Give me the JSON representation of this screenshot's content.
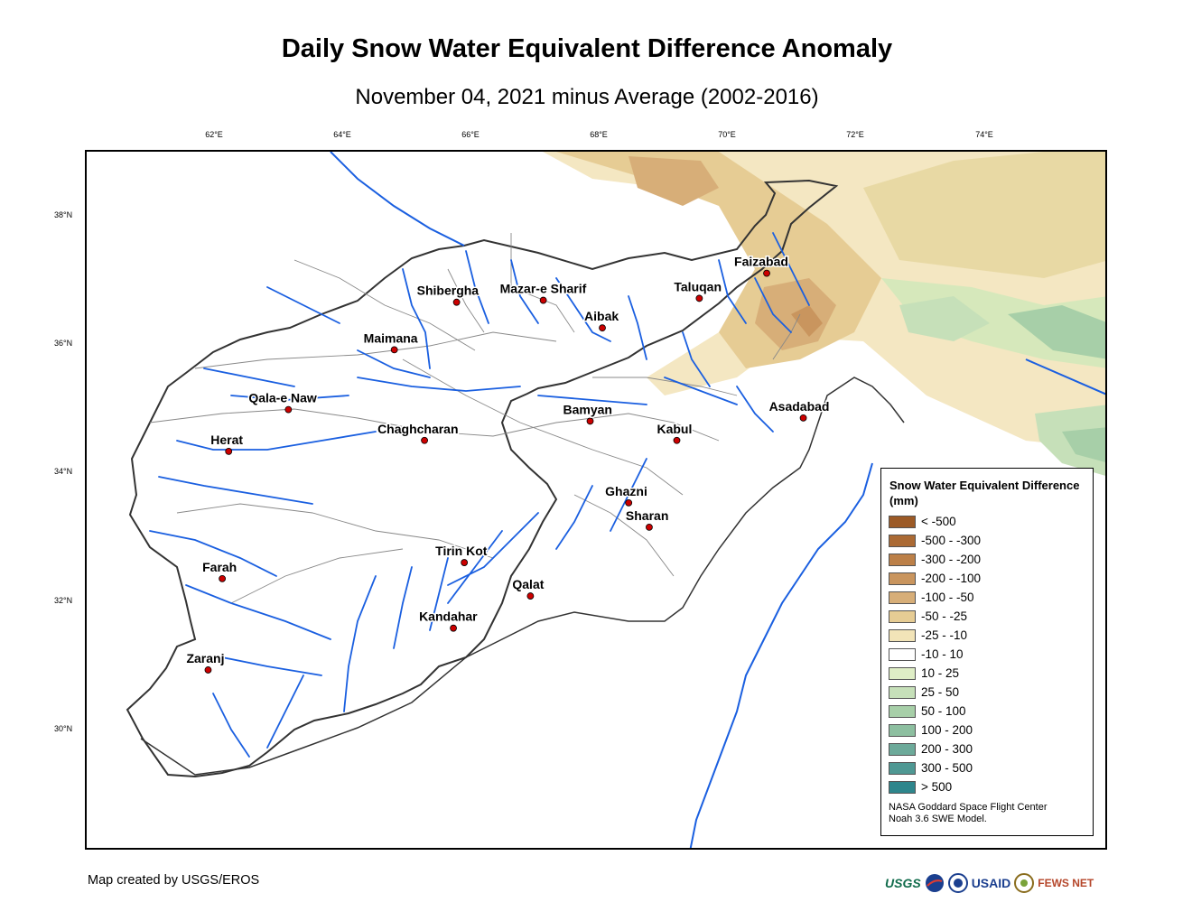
{
  "title": "Daily Snow Water Equivalent Difference Anomaly",
  "subtitle": "November 04, 2021 minus Average (2002-2016)",
  "axes": {
    "longitudes": [
      "62°E",
      "64°E",
      "66°E",
      "68°E",
      "70°E",
      "72°E",
      "74°E"
    ],
    "latitudes": [
      "38°N",
      "36°N",
      "34°N",
      "32°N",
      "30°N"
    ]
  },
  "cities": [
    {
      "name": "Faizabad",
      "lon": 70.58,
      "lat": 37.12
    },
    {
      "name": "Shibergha",
      "lon": 65.75,
      "lat": 36.67
    },
    {
      "name": "Mazar-e Sharif",
      "lon": 67.1,
      "lat": 36.7
    },
    {
      "name": "Taluqan",
      "lon": 69.53,
      "lat": 36.73
    },
    {
      "name": "Aibak",
      "lon": 68.02,
      "lat": 36.27
    },
    {
      "name": "Maimana",
      "lon": 64.78,
      "lat": 35.93
    },
    {
      "name": "Qala-e Naw",
      "lon": 63.13,
      "lat": 35.0
    },
    {
      "name": "Bamyan",
      "lon": 67.83,
      "lat": 34.82
    },
    {
      "name": "Asadabad",
      "lon": 71.15,
      "lat": 34.87
    },
    {
      "name": "Herat",
      "lon": 62.2,
      "lat": 34.35
    },
    {
      "name": "Chaghcharan",
      "lon": 65.25,
      "lat": 34.52
    },
    {
      "name": "Kabul",
      "lon": 69.18,
      "lat": 34.52
    },
    {
      "name": "Ghazni",
      "lon": 68.43,
      "lat": 33.55
    },
    {
      "name": "Sharan",
      "lon": 68.75,
      "lat": 33.17
    },
    {
      "name": "Farah",
      "lon": 62.1,
      "lat": 32.37
    },
    {
      "name": "Tirin Kot",
      "lon": 65.87,
      "lat": 32.62
    },
    {
      "name": "Qalat",
      "lon": 66.9,
      "lat": 32.1
    },
    {
      "name": "Kandahar",
      "lon": 65.7,
      "lat": 31.6
    },
    {
      "name": "Zaranj",
      "lon": 61.88,
      "lat": 30.95
    }
  ],
  "legend": {
    "title": "Snow Water Equivalent Difference (mm)",
    "items": [
      {
        "label": "< -500",
        "color": "#9c5a26"
      },
      {
        "label": "-500 - -300",
        "color": "#ab6a34"
      },
      {
        "label": "-300 - -200",
        "color": "#bc8048"
      },
      {
        "label": "-200 - -100",
        "color": "#c9955e"
      },
      {
        "label": "-100 - -50",
        "color": "#d7ae78"
      },
      {
        "label": "-50 - -25",
        "color": "#e6cc94"
      },
      {
        "label": "-25 - -10",
        "color": "#f2e4b8"
      },
      {
        "label": "-10 - 10",
        "color": "#ffffff"
      },
      {
        "label": "10 - 25",
        "color": "#dfeec6"
      },
      {
        "label": "25 - 50",
        "color": "#c6e0b9"
      },
      {
        "label": "50 - 100",
        "color": "#a7cfa8"
      },
      {
        "label": "100 - 200",
        "color": "#8dbfa0"
      },
      {
        "label": "200 - 300",
        "color": "#6daa9a"
      },
      {
        "label": "300 - 500",
        "color": "#4f9893"
      },
      {
        "label": "> 500",
        "color": "#2e868c"
      }
    ],
    "credit_line1": "NASA Goddard Space Flight Center",
    "credit_line2": "Noah 3.6 SWE Model."
  },
  "footer": "Map created by USGS/EROS",
  "logos": {
    "usgs": "USGS",
    "usaid": "USAID",
    "fewsnet": "FEWS NET"
  },
  "colors": {
    "river": "#1a5fe0",
    "border": "#333333",
    "city": "#cc0000"
  }
}
